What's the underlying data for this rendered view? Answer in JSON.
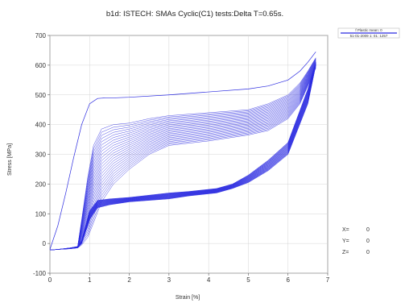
{
  "chart_data": {
    "type": "line",
    "title": "b1d: ISTECH: SMAs Cyclic(C1) tests:Delta T=0.65s.",
    "xlabel": "Strain [%]",
    "ylabel": "Stress [MPa]",
    "xlim": [
      0,
      7
    ],
    "ylim": [
      -100,
      700
    ],
    "xticks": [
      "0",
      "1",
      "2",
      "3",
      "4",
      "5",
      "6",
      "7"
    ],
    "yticks": [
      "-100",
      "0",
      "100",
      "200",
      "300",
      "400",
      "500",
      "600",
      "700"
    ],
    "grid": true,
    "line_color": "#2a2ae0",
    "legend": {
      "placement": "top-right",
      "entries": [
        "f Plastic mean: 0",
        "51-01-2009 1: 01: 1257"
      ]
    },
    "readout": [
      {
        "label": "X=",
        "value": "0"
      },
      {
        "label": "Y=",
        "value": "0"
      },
      {
        "label": "Z=",
        "value": "0"
      }
    ],
    "n_cycles": 24,
    "first_loading": {
      "x": [
        0,
        0.2,
        0.4,
        0.6,
        0.8,
        1.0,
        1.2,
        1.4,
        1.6,
        2.0,
        3.0,
        4.0,
        5.0,
        5.5,
        6.0,
        6.3,
        6.5,
        6.7
      ],
      "y": [
        -20,
        60,
        170,
        290,
        400,
        470,
        488,
        490,
        490,
        492,
        500,
        510,
        520,
        530,
        550,
        580,
        610,
        645
      ]
    },
    "loading_envelope": {
      "x": [
        0.7,
        0.8,
        0.95,
        1.1,
        1.3,
        1.6,
        2.0,
        2.5,
        3.0,
        4.0,
        5.0,
        5.5,
        6.0,
        6.3,
        6.5,
        6.7
      ],
      "y_top": [
        -10,
        80,
        220,
        330,
        385,
        400,
        405,
        420,
        430,
        440,
        450,
        470,
        500,
        540,
        580,
        625
      ],
      "y_bottom": [
        -15,
        -5,
        20,
        70,
        140,
        200,
        250,
        300,
        330,
        345,
        365,
        380,
        420,
        470,
        530,
        590
      ]
    },
    "unloading_envelope": {
      "x": [
        6.7,
        6.5,
        6.0,
        5.5,
        5.0,
        4.6,
        4.2,
        3.5,
        3.0,
        2.0,
        1.5,
        1.2,
        1.0,
        0.9,
        0.8,
        0.7,
        0.5,
        0.2,
        0
      ],
      "y_top": [
        610,
        520,
        340,
        280,
        230,
        200,
        185,
        175,
        170,
        155,
        150,
        145,
        110,
        60,
        10,
        -10,
        -15,
        -20,
        -22
      ],
      "y_bottom": [
        600,
        470,
        300,
        245,
        205,
        185,
        170,
        160,
        150,
        140,
        130,
        120,
        80,
        40,
        0,
        -15,
        -18,
        -20,
        -22
      ]
    }
  }
}
